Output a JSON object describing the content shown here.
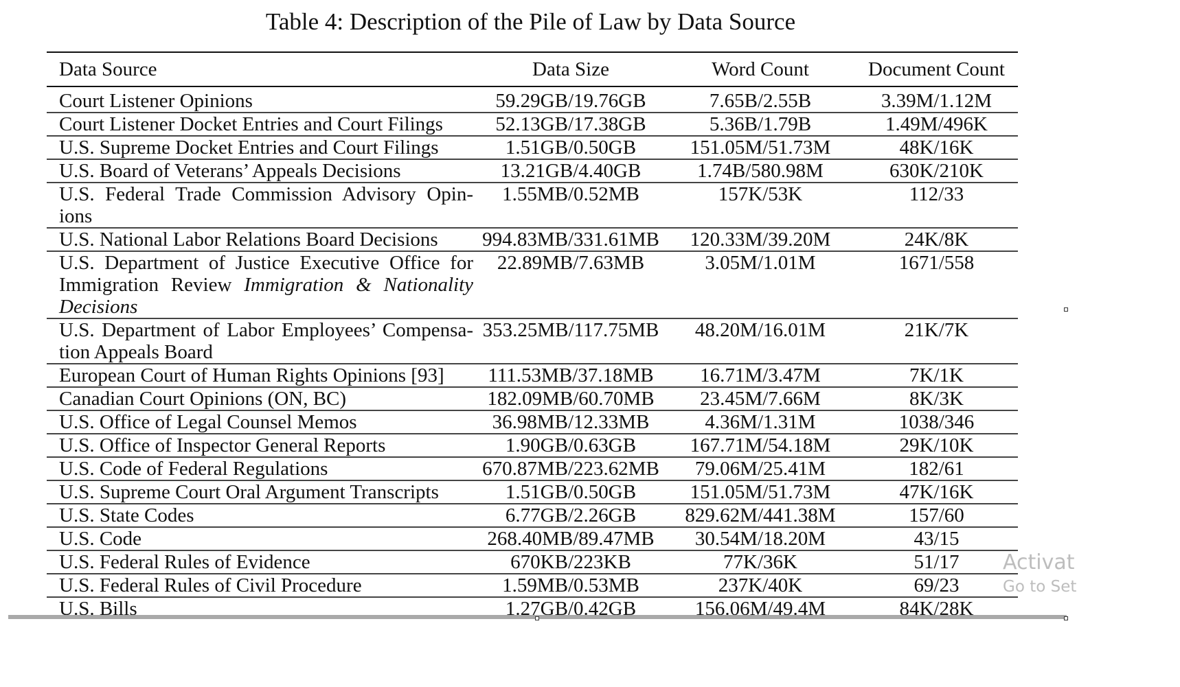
{
  "caption": "Table 4: Description of the Pile of Law by Data Source",
  "columns": [
    "Data Source",
    "Data Size",
    "Word Count",
    "Document Count"
  ],
  "rows": [
    {
      "source": "Court Listener Opinions",
      "size": "59.29GB/19.76GB",
      "words": "7.65B/2.55B",
      "docs": "3.39M/1.12M"
    },
    {
      "source": "Court Listener Docket Entries and Court Filings",
      "size": "52.13GB/17.38GB",
      "words": "5.36B/1.79B",
      "docs": "1.49M/496K"
    },
    {
      "source": "U.S. Supreme Docket Entries and Court Filings",
      "size": "1.51GB/0.50GB",
      "words": "151.05M/51.73M",
      "docs": "48K/16K"
    },
    {
      "source": "U.S. Board of Veterans’ Appeals Decisions",
      "size": "13.21GB/4.40GB",
      "words": "1.74B/580.98M",
      "docs": "630K/210K"
    },
    {
      "source": "U.S. Federal Trade Commission Advisory Opin-ions",
      "size": "1.55MB/0.52MB",
      "words": "157K/53K",
      "docs": "112/33"
    },
    {
      "source": "U.S. National Labor Relations Board Decisions",
      "size": "994.83MB/331.61MB",
      "words": "120.33M/39.20M",
      "docs": "24K/8K"
    },
    {
      "source": "U.S. Department of Justice Executive Office for Immigration Review",
      "source_italic": "Immigration & Nationality Decisions",
      "size": "22.89MB/7.63MB",
      "words": "3.05M/1.01M",
      "docs": "1671/558"
    },
    {
      "source": "U.S. Department of Labor Employees’ Compensa-tion Appeals Board",
      "size": "353.25MB/117.75MB",
      "words": "48.20M/16.01M",
      "docs": "21K/7K"
    },
    {
      "source": "European Court of Human Rights Opinions [93]",
      "size": "111.53MB/37.18MB",
      "words": "16.71M/3.47M",
      "docs": "7K/1K"
    },
    {
      "source": "Canadian Court Opinions (ON, BC)",
      "size": "182.09MB/60.70MB",
      "words": "23.45M/7.66M",
      "docs": "8K/3K"
    },
    {
      "source": "U.S. Office of Legal Counsel Memos",
      "size": "36.98MB/12.33MB",
      "words": "4.36M/1.31M",
      "docs": "1038/346"
    },
    {
      "source": "U.S. Office of Inspector General Reports",
      "size": "1.90GB/0.63GB",
      "words": "167.71M/54.18M",
      "docs": "29K/10K"
    },
    {
      "source": "U.S. Code of Federal Regulations",
      "size": "670.87MB/223.62MB",
      "words": "79.06M/25.41M",
      "docs": "182/61"
    },
    {
      "source": "U.S. Supreme Court Oral Argument Transcripts",
      "size": "1.51GB/0.50GB",
      "words": "151.05M/51.73M",
      "docs": "47K/16K"
    },
    {
      "source": "U.S. State Codes",
      "size": "6.77GB/2.26GB",
      "words": "829.62M/441.38M",
      "docs": "157/60"
    },
    {
      "source": "U.S. Code",
      "size": "268.40MB/89.47MB",
      "words": "30.54M/18.20M",
      "docs": "43/15"
    },
    {
      "source": "U.S. Federal Rules of Evidence",
      "size": "670KB/223KB",
      "words": "77K/36K",
      "docs": "51/17"
    },
    {
      "source": "U.S. Federal Rules of Civil Procedure",
      "size": "1.59MB/0.53MB",
      "words": "237K/40K",
      "docs": "69/23"
    },
    {
      "source": "U.S. Bills",
      "size": "1.27GB/0.42GB",
      "words": "156.06M/49.4M",
      "docs": "84K/28K"
    }
  ],
  "watermark": {
    "line1": "Activat",
    "line2": "Go to Set"
  }
}
